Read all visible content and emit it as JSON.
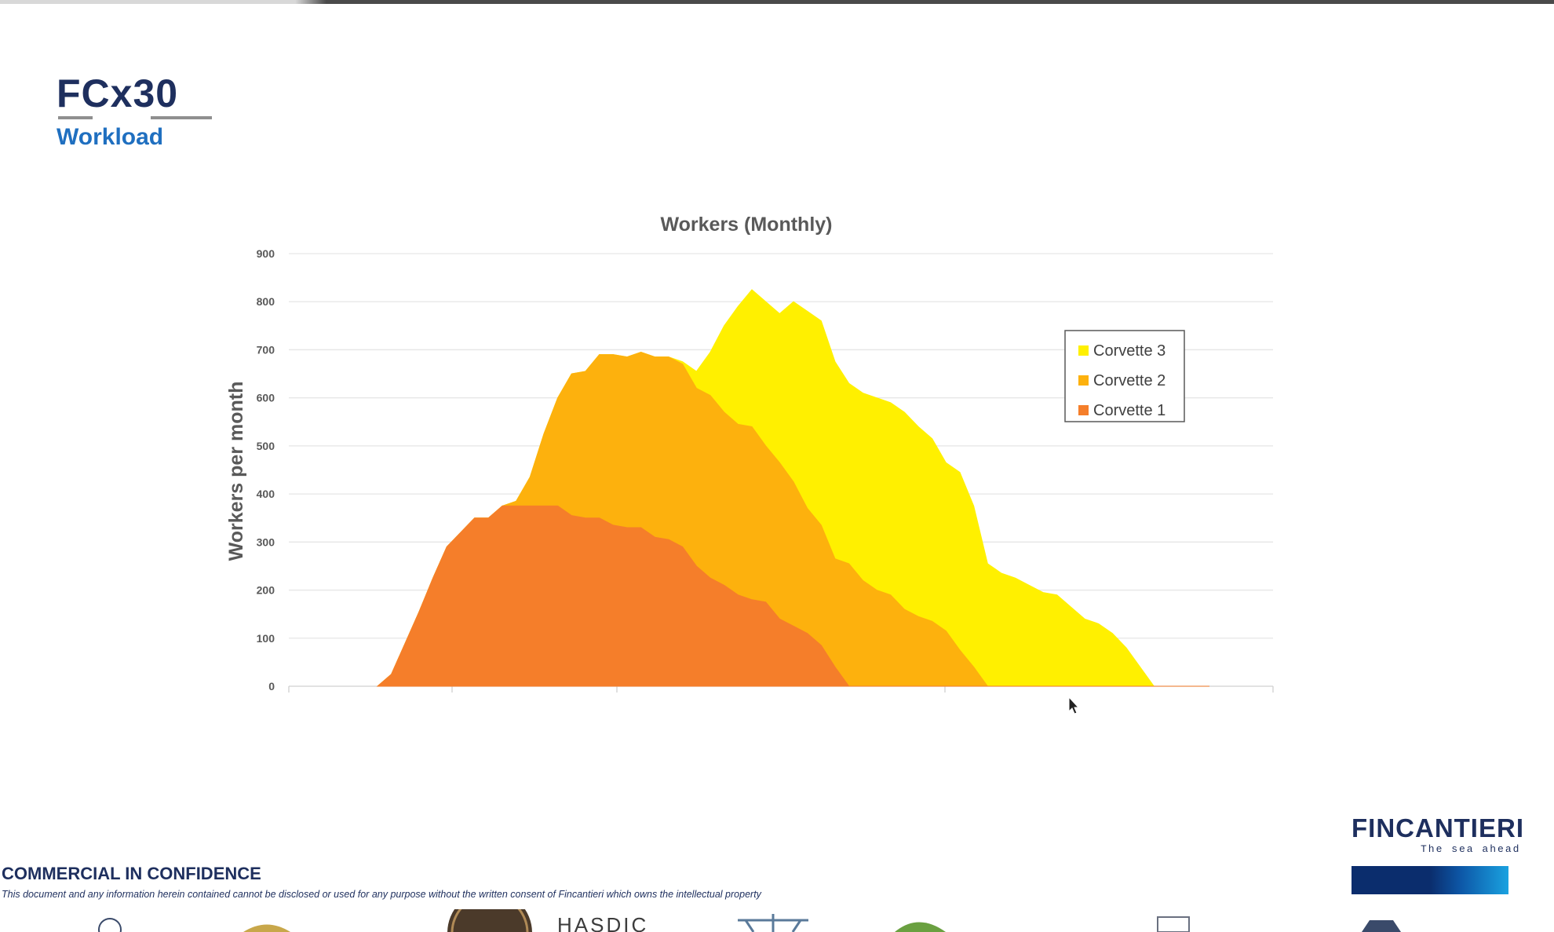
{
  "header": {
    "logo_text": "FCx30",
    "subtitle": "Workload"
  },
  "colors": {
    "brand_navy": "#1e2f5e",
    "subtitle_blue": "#1f6fc0",
    "corvette_1": "#f57e2a",
    "corvette_2": "#fdb10d",
    "corvette_3": "#fff000"
  },
  "chart_data": {
    "type": "area",
    "stacked": true,
    "title": "Workers (Monthly)",
    "xlabel": "",
    "ylabel": "Workers per month",
    "ylim": [
      0,
      900
    ],
    "yticks": [
      0,
      100,
      200,
      300,
      400,
      500,
      600,
      700,
      800,
      900
    ],
    "grid": true,
    "legend_position": "right",
    "x": [
      0,
      1,
      2,
      3,
      4,
      5,
      6,
      7,
      8,
      9,
      10,
      11,
      12,
      13,
      14,
      15,
      16,
      17,
      18,
      19,
      20,
      21,
      22,
      23,
      24,
      25,
      26,
      27,
      28,
      29,
      30,
      31,
      32,
      33,
      34,
      35,
      36,
      37,
      38,
      39,
      40,
      41,
      42,
      43,
      44,
      45,
      46,
      47,
      48,
      49,
      50,
      51,
      52,
      53,
      54,
      55,
      56,
      57,
      58,
      59,
      60
    ],
    "series": [
      {
        "name": "Corvette 1",
        "color": "#f57e2a",
        "values": [
          0,
          25,
          90,
          155,
          225,
          290,
          320,
          350,
          350,
          375,
          375,
          375,
          375,
          375,
          355,
          350,
          350,
          335,
          330,
          330,
          310,
          305,
          290,
          250,
          225,
          210,
          190,
          180,
          175,
          140,
          125,
          110,
          85,
          40,
          0,
          0,
          0,
          0,
          0,
          0,
          0,
          0,
          0,
          0,
          0,
          0,
          0,
          0,
          0,
          0,
          0,
          0,
          0,
          0,
          0,
          0,
          0,
          0,
          0,
          0,
          0
        ]
      },
      {
        "name": "Corvette 2",
        "color": "#fdb10d",
        "values": [
          0,
          0,
          0,
          0,
          0,
          0,
          0,
          0,
          0,
          0,
          10,
          60,
          150,
          225,
          295,
          305,
          340,
          355,
          355,
          365,
          375,
          380,
          380,
          370,
          380,
          360,
          355,
          360,
          325,
          325,
          300,
          260,
          250,
          225,
          255,
          220,
          200,
          190,
          160,
          145,
          135,
          115,
          75,
          40,
          0,
          0,
          0,
          0,
          0,
          0,
          0,
          0,
          0,
          0,
          0,
          0,
          0,
          0,
          0,
          0,
          0
        ]
      },
      {
        "name": "Corvette 3",
        "color": "#fff000",
        "values": [
          0,
          0,
          0,
          0,
          0,
          0,
          0,
          0,
          0,
          0,
          0,
          0,
          0,
          0,
          0,
          0,
          0,
          0,
          0,
          0,
          0,
          0,
          5,
          35,
          90,
          180,
          245,
          285,
          300,
          310,
          375,
          410,
          425,
          410,
          375,
          390,
          400,
          400,
          410,
          395,
          380,
          350,
          370,
          335,
          255,
          235,
          225,
          210,
          195,
          190,
          165,
          140,
          130,
          110,
          80,
          40,
          0,
          0,
          0,
          0,
          0
        ]
      }
    ]
  },
  "legend": [
    {
      "label": "Corvette 3",
      "color": "#fff000"
    },
    {
      "label": "Corvette 2",
      "color": "#fdb10d"
    },
    {
      "label": "Corvette 1",
      "color": "#f57e2a"
    }
  ],
  "footer": {
    "brand": "FINCANTIERI",
    "tagline": "The sea ahead",
    "confidentiality": "COMMERCIAL IN CONFIDENCE",
    "disclaimer": "This document and any information herein contained cannot be disclosed or used for any purpose without the written consent of Fincantieri which owns the intellectual property",
    "partner_text": "HASDIC"
  }
}
